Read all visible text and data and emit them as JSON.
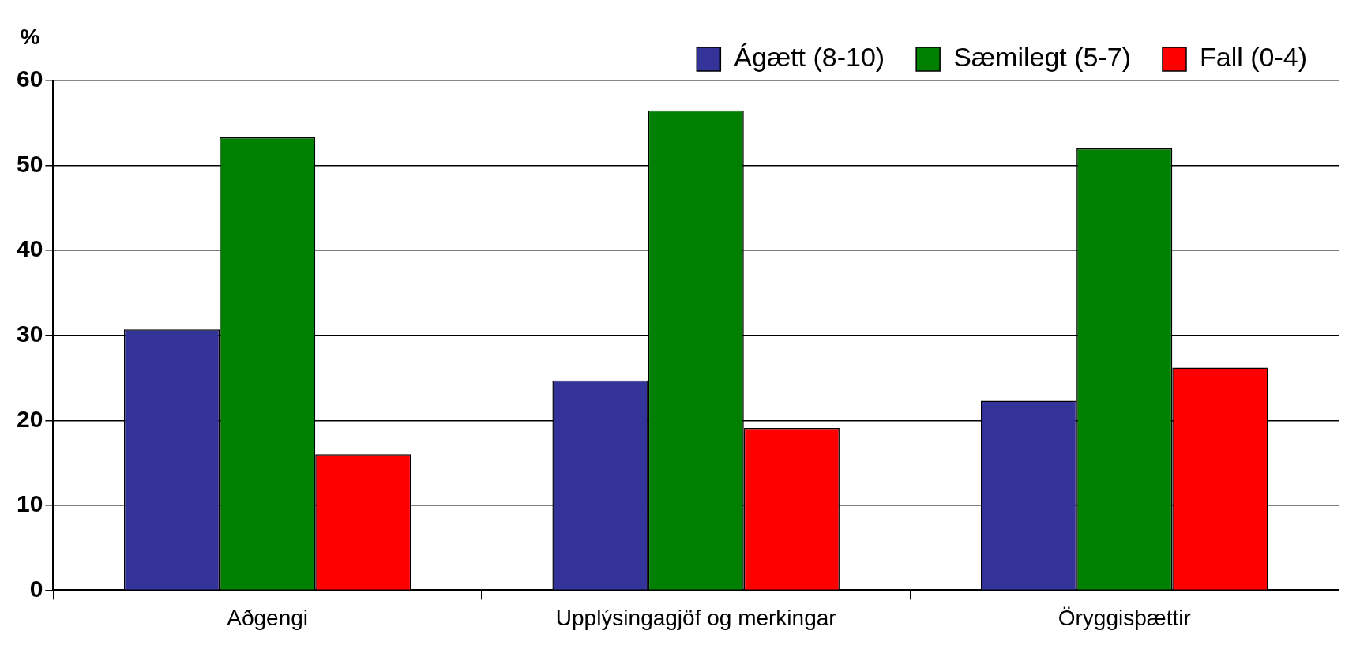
{
  "chart_data": {
    "type": "bar",
    "ylabel": "%",
    "categories": [
      "Aðgengi",
      "Upplýsingagjöf og merkingar",
      "Öryggisþættir"
    ],
    "series": [
      {
        "name": "Ágætt (8-10)",
        "color": "#333399",
        "values": [
          30.7,
          24.7,
          22.3
        ]
      },
      {
        "name": "Sæmilegt (5-7)",
        "color": "#008000",
        "values": [
          53.3,
          56.5,
          52.0
        ]
      },
      {
        "name": "Fall (0-4)",
        "color": "#ff0000",
        "values": [
          16.0,
          19.1,
          26.2
        ]
      }
    ],
    "ylim": [
      0,
      60
    ],
    "yticks": [
      0,
      10,
      20,
      30,
      40,
      50,
      60
    ],
    "grid": "y",
    "legend": "top"
  }
}
